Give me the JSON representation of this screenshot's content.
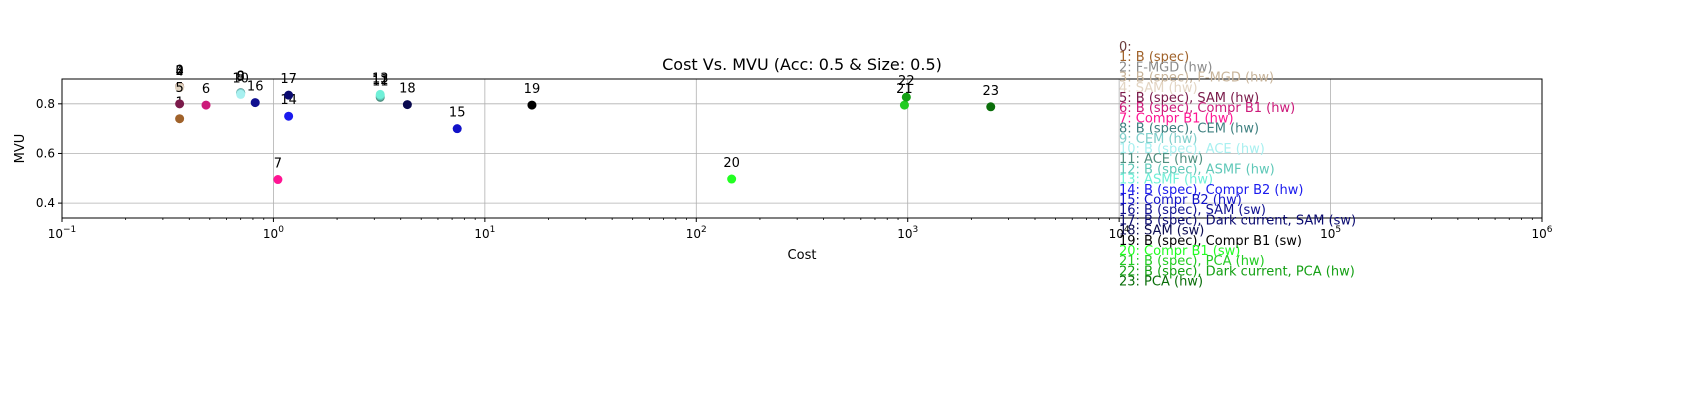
{
  "chart_data": {
    "type": "scatter",
    "title": "Cost Vs. MVU (Acc: 0.5 & Size: 0.5)",
    "xlabel": "Cost",
    "ylabel": "MVU",
    "xscale": "log",
    "xlim": [
      0.1,
      1000000
    ],
    "ylim": [
      0.34,
      0.9
    ],
    "x_ticks": [
      {
        "base": "10",
        "exp": "−1"
      },
      {
        "base": "10",
        "exp": "0"
      },
      {
        "base": "10",
        "exp": "1"
      },
      {
        "base": "10",
        "exp": "2"
      },
      {
        "base": "10",
        "exp": "3"
      },
      {
        "base": "10",
        "exp": "4"
      },
      {
        "base": "10",
        "exp": "5"
      },
      {
        "base": "10",
        "exp": "6"
      }
    ],
    "y_ticks": [
      "0.4",
      "0.6",
      "0.8"
    ],
    "y_tick_values": [
      0.4,
      0.6,
      0.8
    ],
    "grid": true,
    "legend_position": "right",
    "points": [
      {
        "label": "0",
        "x": 0.36,
        "y": 0.87,
        "color": "#6b3a3a"
      },
      {
        "label": "1",
        "x": 0.36,
        "y": 0.74,
        "color": "#a0622a"
      },
      {
        "label": "2",
        "x": 0.36,
        "y": 0.867,
        "color": "#8c8c8c"
      },
      {
        "label": "3",
        "x": 0.36,
        "y": 0.868,
        "color": "#c8b49a"
      },
      {
        "label": "4",
        "x": 0.36,
        "y": 0.865,
        "color": "#e3d5c3"
      },
      {
        "label": "5",
        "x": 0.36,
        "y": 0.8,
        "color": "#7a1a4a"
      },
      {
        "label": "6",
        "x": 0.48,
        "y": 0.795,
        "color": "#cc1a7a"
      },
      {
        "label": "7",
        "x": 1.05,
        "y": 0.495,
        "color": "#ff1493"
      },
      {
        "label": "8",
        "x": 0.7,
        "y": 0.845,
        "color": "#3f8080"
      },
      {
        "label": "9",
        "x": 0.7,
        "y": 0.843,
        "color": "#7ececa"
      },
      {
        "label": "10",
        "x": 0.7,
        "y": 0.838,
        "color": "#a8f0f0"
      },
      {
        "label": "11",
        "x": 3.2,
        "y": 0.826,
        "color": "#4f8f7f"
      },
      {
        "label": "12",
        "x": 3.2,
        "y": 0.832,
        "color": "#5fc8b8"
      },
      {
        "label": "13",
        "x": 3.2,
        "y": 0.838,
        "color": "#6ff0d8"
      },
      {
        "label": "14",
        "x": 1.18,
        "y": 0.75,
        "color": "#1a1aee"
      },
      {
        "label": "15",
        "x": 7.4,
        "y": 0.7,
        "color": "#1212c8"
      },
      {
        "label": "16",
        "x": 0.82,
        "y": 0.805,
        "color": "#101090"
      },
      {
        "label": "17",
        "x": 1.18,
        "y": 0.835,
        "color": "#0a0a70"
      },
      {
        "label": "18",
        "x": 4.3,
        "y": 0.797,
        "color": "#0a0a50"
      },
      {
        "label": "19",
        "x": 16.7,
        "y": 0.795,
        "color": "#000000"
      },
      {
        "label": "20",
        "x": 147,
        "y": 0.497,
        "color": "#22ff22"
      },
      {
        "label": "21",
        "x": 965,
        "y": 0.795,
        "color": "#22cc22"
      },
      {
        "label": "22",
        "x": 985,
        "y": 0.827,
        "color": "#14a014"
      },
      {
        "label": "23",
        "x": 2470,
        "y": 0.788,
        "color": "#0a6e0a"
      }
    ],
    "legend": [
      {
        "text": "0:",
        "color": "#6b3a3a"
      },
      {
        "text": "1:  B (spec)",
        "color": "#a0622a"
      },
      {
        "text": "2:  F-MGD (hw)",
        "color": "#8c8c8c"
      },
      {
        "text": "3:  B (spec), F-MGD (hw)",
        "color": "#c8b49a"
      },
      {
        "text": "4:  SAM (hw)",
        "color": "#e3d5c3"
      },
      {
        "text": "5:  B (spec), SAM (hw)",
        "color": "#7a1a4a"
      },
      {
        "text": "6:  B (spec), Compr B1 (hw)",
        "color": "#cc1a7a"
      },
      {
        "text": "7:  Compr B1 (hw)",
        "color": "#ff1493"
      },
      {
        "text": "8:  B (spec), CEM (hw)",
        "color": "#3f8080"
      },
      {
        "text": "9:  CEM (hw)",
        "color": "#7ececa"
      },
      {
        "text": "10:  B (spec), ACE (hw)",
        "color": "#a8f0f0"
      },
      {
        "text": "11:  ACE (hw)",
        "color": "#4f8f7f"
      },
      {
        "text": "12:  B (spec), ASMF (hw)",
        "color": "#5fc8b8"
      },
      {
        "text": "13:  ASMF (hw)",
        "color": "#6ff0d8"
      },
      {
        "text": "14:  B (spec), Compr B2 (hw)",
        "color": "#1a1aee"
      },
      {
        "text": "15:  Compr B2 (hw)",
        "color": "#1212c8"
      },
      {
        "text": "16:  B (spec), SAM (sw)",
        "color": "#101090"
      },
      {
        "text": "17:  B (spec), Dark current, SAM (sw)",
        "color": "#0a0a70"
      },
      {
        "text": "18:  SAM (sw)",
        "color": "#0a0a50"
      },
      {
        "text": "19:  B (spec), Compr B1 (sw)",
        "color": "#000000"
      },
      {
        "text": "20:  Compr B1 (sw)",
        "color": "#22ff22"
      },
      {
        "text": "21:  B (spec), PCA (hw)",
        "color": "#22cc22"
      },
      {
        "text": "22:  B (spec), Dark current, PCA (hw)",
        "color": "#14a014"
      },
      {
        "text": "23:  PCA (hw)",
        "color": "#0a6e0a"
      }
    ]
  }
}
